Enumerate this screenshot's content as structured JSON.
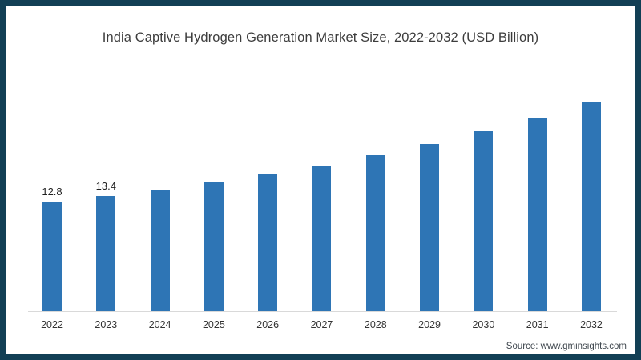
{
  "frame": {
    "border_color": "#123f55",
    "background": "#ffffff"
  },
  "chart": {
    "title": "India Captive Hydrogen Generation Market Size, 2022-2032 (USD Billion)",
    "source": "Source: www.gminsights.com"
  },
  "chart_data": {
    "type": "bar",
    "title": "India Captive Hydrogen Generation Market Size, 2022-2032 (USD Billion)",
    "xlabel": "",
    "ylabel": "",
    "categories": [
      "2022",
      "2023",
      "2024",
      "2025",
      "2026",
      "2027",
      "2028",
      "2029",
      "2030",
      "2031",
      "2032"
    ],
    "values": [
      12.8,
      13.4,
      14.2,
      15.0,
      16.0,
      17.0,
      18.2,
      19.5,
      21.0,
      22.6,
      24.3
    ],
    "data_labels": [
      "12.8",
      "13.4",
      "",
      "",
      "",
      "",
      "",
      "",
      "",
      "",
      ""
    ],
    "bar_color": "#2e75b5",
    "axis_line_color": "#d9d9d9",
    "ylim": [
      0,
      25
    ],
    "grid": false,
    "legend": null,
    "y_axis_shown": false
  }
}
